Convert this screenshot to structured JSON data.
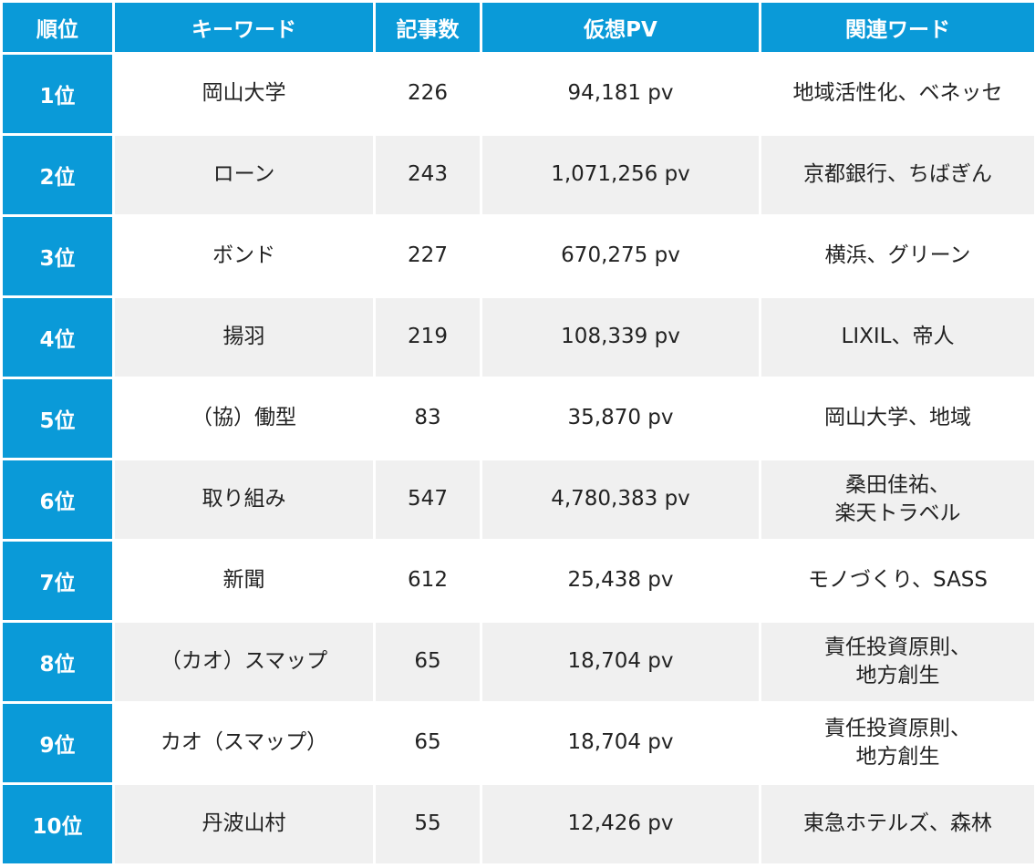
{
  "headers": {
    "rank": "順位",
    "keyword": "キーワード",
    "articles": "記事数",
    "pv": "仮想PV",
    "related": "関連ワード"
  },
  "rows": [
    {
      "rank": "1位",
      "keyword": "岡山大学",
      "articles": "226",
      "pv": "94,181 pv",
      "related": [
        "地域活性化、ベネッセ"
      ]
    },
    {
      "rank": "2位",
      "keyword": "ローン",
      "articles": "243",
      "pv": "1,071,256 pv",
      "related": [
        "京都銀行、ちばぎん"
      ]
    },
    {
      "rank": "3位",
      "keyword": "ボンド",
      "articles": "227",
      "pv": "670,275 pv",
      "related": [
        "横浜、グリーン"
      ]
    },
    {
      "rank": "4位",
      "keyword": "揚羽",
      "articles": "219",
      "pv": "108,339 pv",
      "related": [
        "LIXIL、帝人"
      ]
    },
    {
      "rank": "5位",
      "keyword": "（協）働型",
      "articles": "83",
      "pv": "35,870 pv",
      "related": [
        "岡山大学、地域"
      ]
    },
    {
      "rank": "6位",
      "keyword": "取り組み",
      "articles": "547",
      "pv": "4,780,383 pv",
      "related": [
        "桑田佳祐、",
        "楽天トラベル"
      ]
    },
    {
      "rank": "7位",
      "keyword": "新聞",
      "articles": "612",
      "pv": "25,438 pv",
      "related": [
        "モノづくり、SASS"
      ]
    },
    {
      "rank": "8位",
      "keyword": "（カオ）スマップ",
      "articles": "65",
      "pv": "18,704 pv",
      "related": [
        "責任投資原則、",
        "地方創生"
      ]
    },
    {
      "rank": "9位",
      "keyword": "カオ（スマップ）",
      "articles": "65",
      "pv": "18,704 pv",
      "related": [
        "責任投資原則、",
        "地方創生"
      ]
    },
    {
      "rank": "10位",
      "keyword": "丹波山村",
      "articles": "55",
      "pv": "12,426 pv",
      "related": [
        "東急ホテルズ、森林"
      ]
    }
  ]
}
